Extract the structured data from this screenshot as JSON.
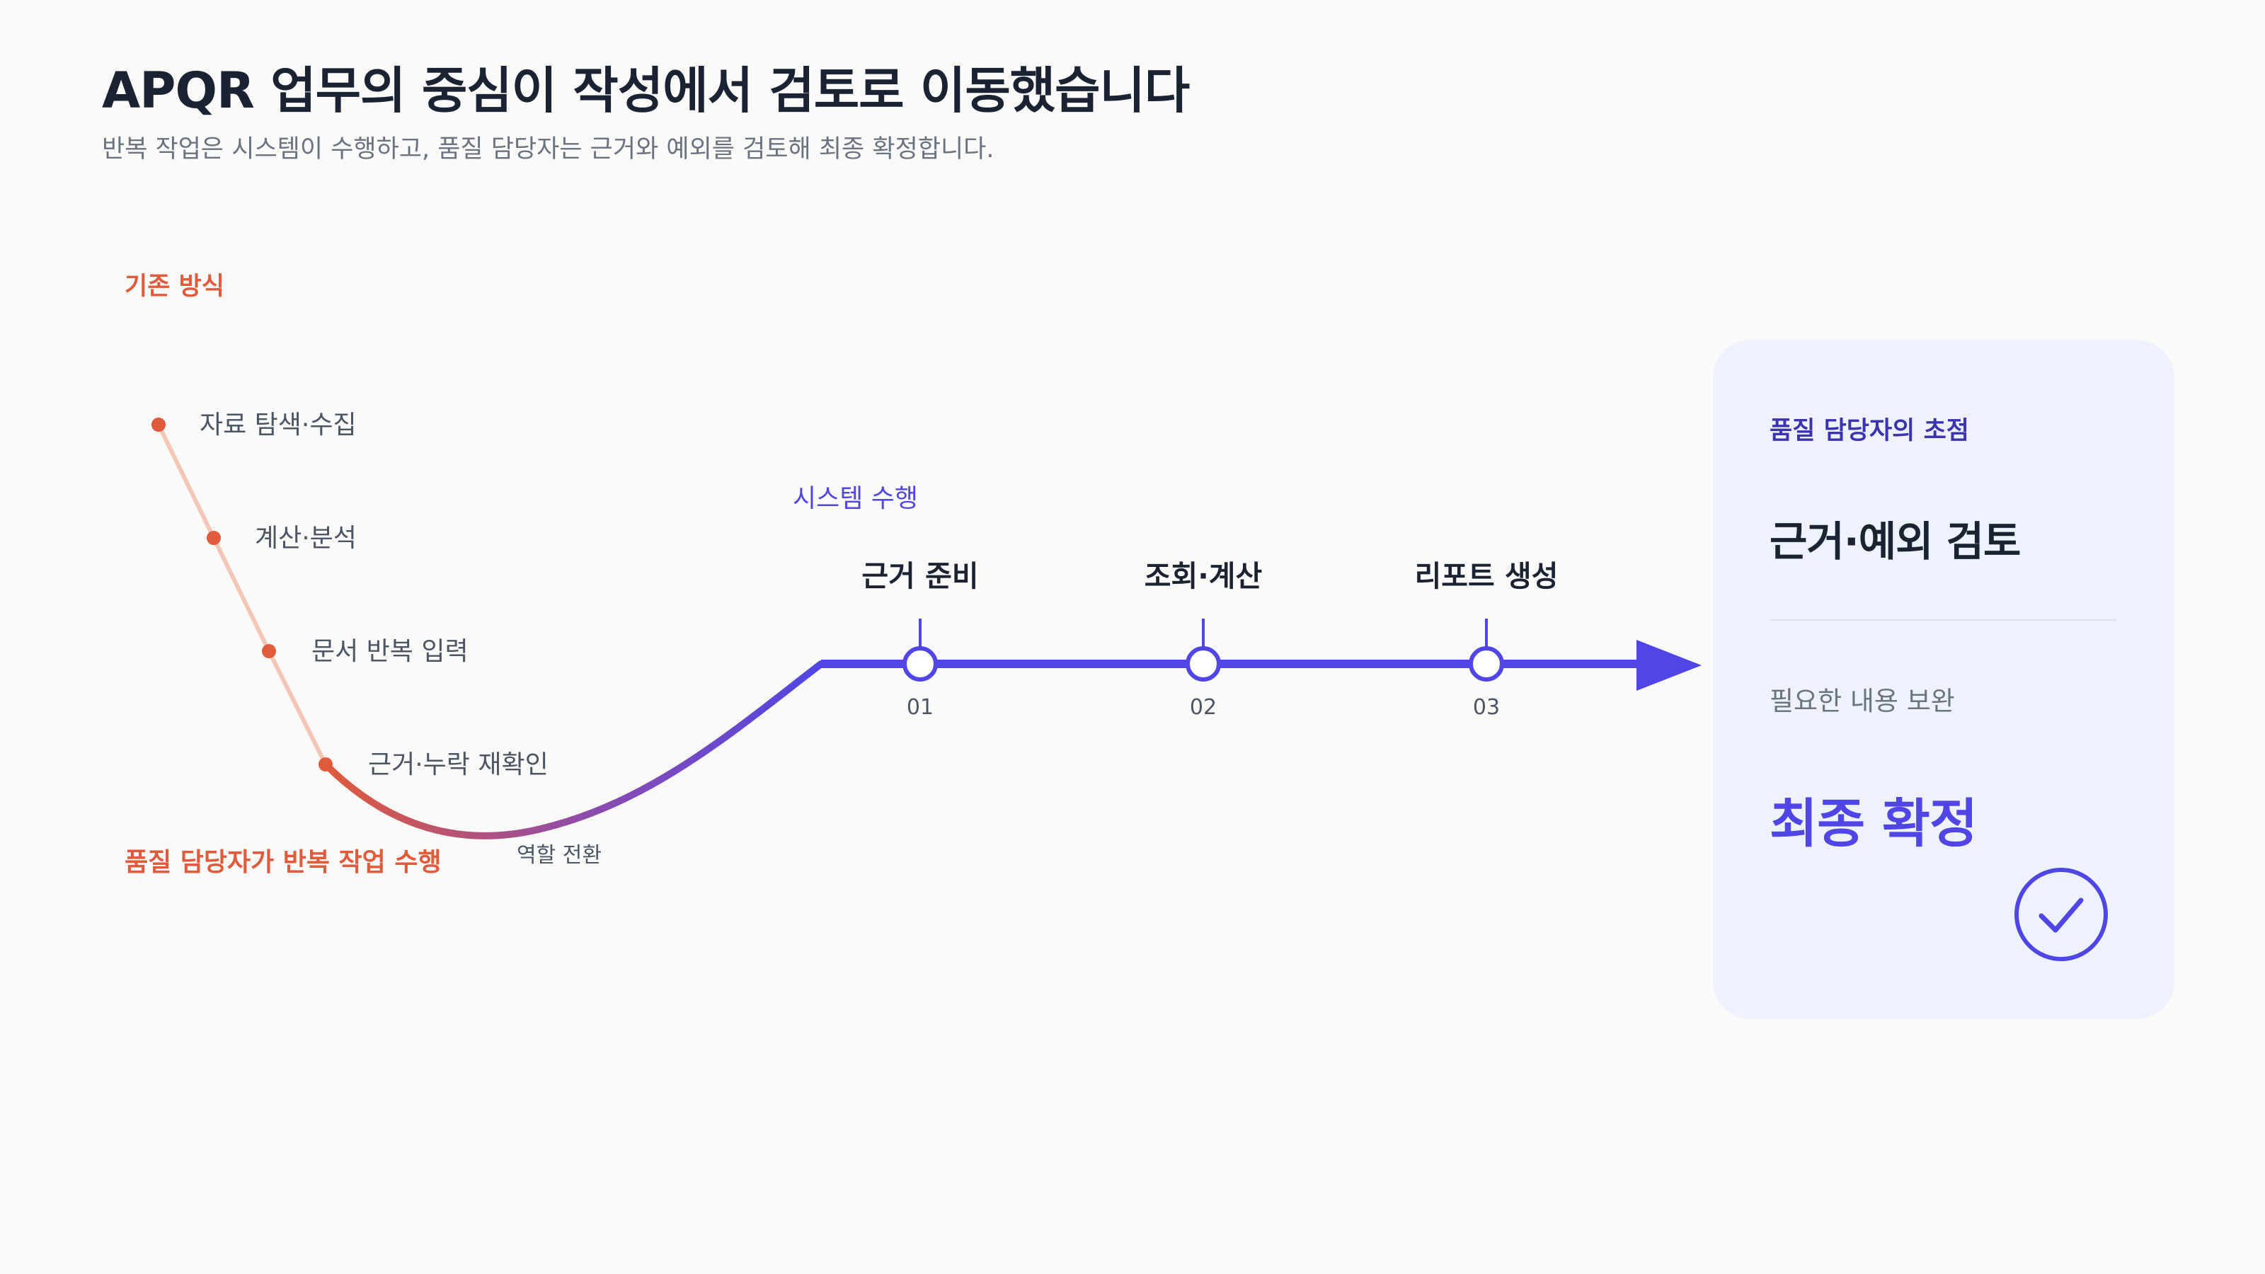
{
  "header": {
    "title": "APQR 업무의 중심이 작성에서 검토로 이동했습니다",
    "subtitle": "반복 작업은 시스템이 수행하고, 품질 담당자는 근거와 예외를 검토해 최종 확정합니다."
  },
  "legacy": {
    "label": "기존 방식",
    "steps": [
      "자료 탐색·수집",
      "계산·분석",
      "문서 반복 입력",
      "근거·누락 재확인"
    ],
    "caption": "품질 담당자가 반복 작업 수행",
    "transition": "역할 전환"
  },
  "system": {
    "label": "시스템 수행",
    "steps": [
      {
        "label": "근거 준비",
        "number": "01"
      },
      {
        "label": "조회·계산",
        "number": "02"
      },
      {
        "label": "리포트 생성",
        "number": "03"
      }
    ]
  },
  "focus": {
    "label": "품질 담당자의 초점",
    "heading": "근거·예외 검토",
    "sub": "필요한 내용 보완",
    "final": "최종 확정",
    "icon": "check-circle-icon"
  },
  "colors": {
    "legacy": "#e05a3c",
    "legacy_line": "#f3c6b7",
    "system": "#5046e5",
    "title": "#1b2333",
    "muted": "#6b7280"
  }
}
